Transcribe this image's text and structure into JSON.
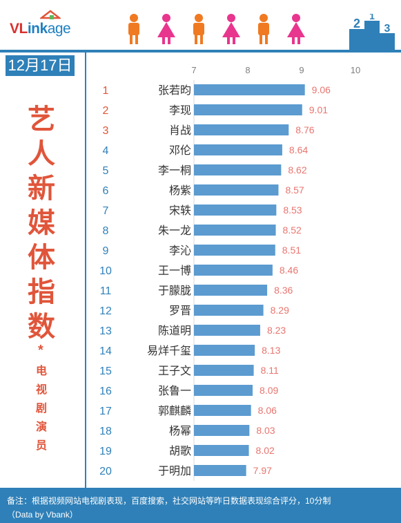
{
  "brand": {
    "logo_v": "VL",
    "logo_ink": "ink",
    "logo_age": "age"
  },
  "sidebar": {
    "date": "12月17日",
    "title_chars": [
      "艺",
      "人",
      "新",
      "媒",
      "体",
      "指",
      "数"
    ],
    "star": "*",
    "subtitle_chars": [
      "电",
      "视",
      "剧",
      "演",
      "员"
    ]
  },
  "colors": {
    "bar": "#5b9bd0",
    "value_label": "#e8756f",
    "rank_top3": "#e0553a",
    "rank_other": "#2f80b8",
    "accent": "#2f80b8",
    "title": "#e0553a"
  },
  "chart_data": {
    "type": "bar",
    "orientation": "horizontal",
    "x_ticks": [
      "7",
      "8",
      "9",
      "10"
    ],
    "xlim": [
      7,
      10
    ],
    "ranks": [
      "1",
      "2",
      "3",
      "4",
      "5",
      "6",
      "7",
      "8",
      "9",
      "10",
      "11",
      "12",
      "13",
      "14",
      "15",
      "16",
      "17",
      "18",
      "19",
      "20"
    ],
    "categories": [
      "张若昀",
      "李现",
      "肖战",
      "邓伦",
      "李一桐",
      "杨紫",
      "宋轶",
      "朱一龙",
      "李沁",
      "王一博",
      "于朦胧",
      "罗晋",
      "陈道明",
      "易烊千玺",
      "王子文",
      "张鲁一",
      "郭麒麟",
      "杨幂",
      "胡歌",
      "于明加"
    ],
    "values": [
      9.06,
      9.01,
      8.76,
      8.64,
      8.62,
      8.57,
      8.53,
      8.52,
      8.51,
      8.46,
      8.36,
      8.29,
      8.23,
      8.13,
      8.11,
      8.09,
      8.06,
      8.03,
      8.02,
      7.97
    ],
    "value_labels": [
      "9.06",
      "9.01",
      "8.76",
      "8.64",
      "8.62",
      "8.57",
      "8.53",
      "8.52",
      "8.51",
      "8.46",
      "8.36",
      "8.29",
      "8.23",
      "8.13",
      "8.11",
      "8.09",
      "8.06",
      "8.03",
      "8.02",
      "7.97"
    ]
  },
  "footer": {
    "note": "备注：根据视频网站电视剧表现，百度搜索，社交网站等昨日数据表现综合评分，10分制",
    "source": "（Data by Vbank）"
  }
}
